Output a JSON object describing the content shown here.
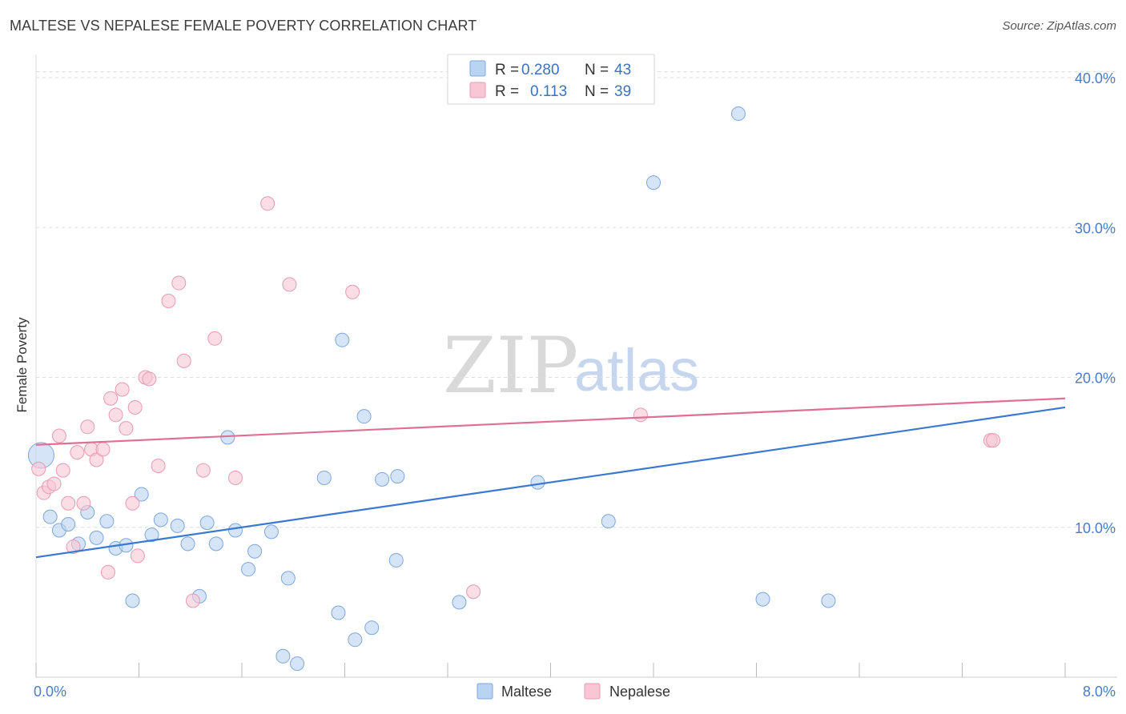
{
  "title": "MALTESE VS NEPALESE FEMALE POVERTY CORRELATION CHART",
  "source": "Source: ZipAtlas.com",
  "watermark": {
    "part1": "ZIP",
    "part2": "atlas"
  },
  "legend": {
    "rows": [
      {
        "series": "Maltese",
        "r_label": "R =",
        "r_value": "0.280",
        "n_label": "N =",
        "n_value": "43"
      },
      {
        "series": "Nepalese",
        "r_label": "R =",
        "r_value": "0.113",
        "n_label": "N =",
        "n_value": "39"
      }
    ]
  },
  "bottom_legend": [
    "Maltese",
    "Nepalese"
  ],
  "colors": {
    "maltese_fill": "#b9d3f2",
    "maltese_stroke": "#7da7dc",
    "maltese_line": "#3a78d2",
    "nepalese_fill": "#f8c6d5",
    "nepalese_stroke": "#e99ab3",
    "nepalese_line": "#e06f96",
    "tick_text": "#4a7cc7",
    "grid": "#dddddd"
  },
  "chart_data": {
    "type": "scatter",
    "title": "MALTESE VS NEPALESE FEMALE POVERTY CORRELATION CHART",
    "xlabel": "",
    "ylabel": "Female Poverty",
    "xlim": [
      0,
      8
    ],
    "ylim": [
      0,
      40.5
    ],
    "x_tick_labels": [
      {
        "value": 0,
        "label": "0.0%"
      },
      {
        "value": 8,
        "label": "8.0%"
      }
    ],
    "y_tick_labels": [
      {
        "value": 10,
        "label": "10.0%"
      },
      {
        "value": 20,
        "label": "20.0%"
      },
      {
        "value": 30,
        "label": "30.0%"
      },
      {
        "value": 40,
        "label": "40.0%"
      }
    ],
    "grid": true,
    "legend_position": "top-center",
    "series": [
      {
        "name": "Maltese",
        "r": 0.28,
        "n": 43,
        "trend": {
          "x": [
            0,
            8
          ],
          "y": [
            8.0,
            18.0
          ]
        },
        "points": [
          [
            0.04,
            14.8
          ],
          [
            0.11,
            10.7
          ],
          [
            0.18,
            9.8
          ],
          [
            0.25,
            10.2
          ],
          [
            0.33,
            8.9
          ],
          [
            0.4,
            11.0
          ],
          [
            0.47,
            9.3
          ],
          [
            0.55,
            10.4
          ],
          [
            0.62,
            8.6
          ],
          [
            0.7,
            8.8
          ],
          [
            0.75,
            5.1
          ],
          [
            0.82,
            12.2
          ],
          [
            0.9,
            9.5
          ],
          [
            0.97,
            10.5
          ],
          [
            1.1,
            10.1
          ],
          [
            1.18,
            8.9
          ],
          [
            1.27,
            5.4
          ],
          [
            1.33,
            10.3
          ],
          [
            1.4,
            8.9
          ],
          [
            1.49,
            16.0
          ],
          [
            1.55,
            9.8
          ],
          [
            1.65,
            7.2
          ],
          [
            1.7,
            8.4
          ],
          [
            1.83,
            9.7
          ],
          [
            1.92,
            1.4
          ],
          [
            1.96,
            6.6
          ],
          [
            2.03,
            0.9
          ],
          [
            2.24,
            13.3
          ],
          [
            2.35,
            4.3
          ],
          [
            2.38,
            22.5
          ],
          [
            2.48,
            2.5
          ],
          [
            2.55,
            17.4
          ],
          [
            2.61,
            3.3
          ],
          [
            2.69,
            13.2
          ],
          [
            2.8,
            7.8
          ],
          [
            2.81,
            13.4
          ],
          [
            3.29,
            5.0
          ],
          [
            3.9,
            13.0
          ],
          [
            4.45,
            10.4
          ],
          [
            4.8,
            33.0
          ],
          [
            5.46,
            37.6
          ],
          [
            5.65,
            5.2
          ],
          [
            6.16,
            5.1
          ]
        ]
      },
      {
        "name": "Nepalese",
        "r": 0.113,
        "n": 39,
        "trend": {
          "x": [
            0,
            8
          ],
          "y": [
            15.5,
            18.6
          ]
        },
        "points": [
          [
            0.02,
            13.9
          ],
          [
            0.06,
            12.3
          ],
          [
            0.1,
            12.7
          ],
          [
            0.14,
            12.9
          ],
          [
            0.18,
            16.1
          ],
          [
            0.21,
            13.8
          ],
          [
            0.25,
            11.6
          ],
          [
            0.29,
            8.7
          ],
          [
            0.32,
            15.0
          ],
          [
            0.37,
            11.6
          ],
          [
            0.4,
            16.7
          ],
          [
            0.43,
            15.2
          ],
          [
            0.47,
            14.5
          ],
          [
            0.52,
            15.2
          ],
          [
            0.56,
            7.0
          ],
          [
            0.58,
            18.6
          ],
          [
            0.62,
            17.5
          ],
          [
            0.67,
            19.2
          ],
          [
            0.7,
            16.6
          ],
          [
            0.75,
            11.6
          ],
          [
            0.77,
            18.0
          ],
          [
            0.79,
            8.1
          ],
          [
            0.85,
            20.0
          ],
          [
            0.88,
            19.9
          ],
          [
            0.95,
            14.1
          ],
          [
            1.03,
            25.1
          ],
          [
            1.11,
            26.3
          ],
          [
            1.15,
            21.1
          ],
          [
            1.22,
            5.1
          ],
          [
            1.3,
            13.8
          ],
          [
            1.39,
            22.6
          ],
          [
            1.55,
            13.3
          ],
          [
            1.8,
            31.6
          ],
          [
            1.97,
            26.2
          ],
          [
            2.46,
            25.7
          ],
          [
            3.4,
            5.7
          ],
          [
            4.7,
            17.5
          ],
          [
            7.42,
            15.8
          ],
          [
            7.44,
            15.8
          ]
        ]
      }
    ]
  }
}
